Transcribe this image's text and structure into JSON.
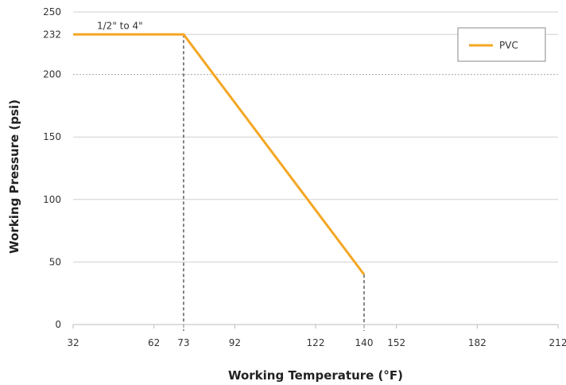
{
  "chart_data": {
    "type": "line",
    "title": "",
    "xlabel": "Working Temperature (°F)",
    "ylabel": "Working Pressure (psi)",
    "xlim": [
      32,
      212
    ],
    "ylim": [
      0,
      250
    ],
    "x_ticks": [
      32,
      62,
      73,
      92,
      122,
      140,
      152,
      182,
      212
    ],
    "y_ticks": [
      0,
      50,
      100,
      150,
      200,
      232,
      250
    ],
    "grid": "horizontal",
    "legend": {
      "placement": "top-right",
      "entries": [
        "PVC"
      ]
    },
    "series": [
      {
        "name": "PVC",
        "color": "#F5A623",
        "x": [
          32,
          73,
          140
        ],
        "y": [
          232,
          232,
          40
        ]
      }
    ],
    "reference_lines": [
      {
        "type": "vertical-dashed",
        "x": 73,
        "to_y": 232
      },
      {
        "type": "vertical-dashed",
        "x": 140,
        "to_y": 40
      }
    ],
    "annotations": [
      {
        "text": "1/2\" to 4\"",
        "x": 32,
        "y": 232
      }
    ]
  }
}
